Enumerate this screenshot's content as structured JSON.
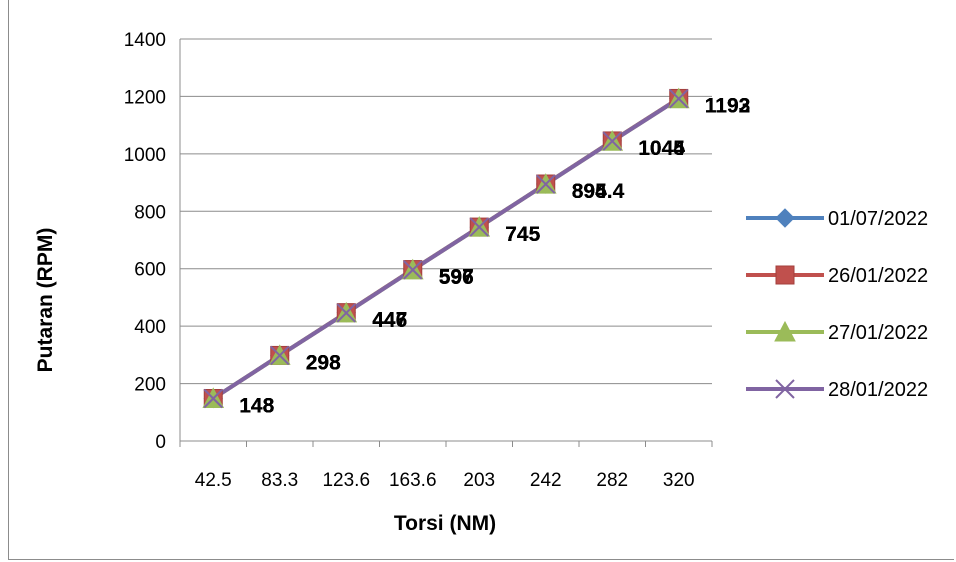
{
  "chart_data": {
    "type": "line",
    "title": "",
    "xlabel": "Torsi (NM)",
    "ylabel": "Putaran (RPM)",
    "categories": [
      "42.5",
      "83.3",
      "123.6",
      "163.6",
      "203",
      "242",
      "282",
      "320"
    ],
    "ylim": [
      0,
      1400
    ],
    "yticks": [
      0,
      200,
      400,
      600,
      800,
      1000,
      1200,
      1400
    ],
    "grid": true,
    "legend_position": "right",
    "series": [
      {
        "name": "01/07/2022",
        "values": [
          148,
          298,
          447,
          597,
          745,
          895,
          1045,
          1193
        ],
        "color": "#4f81bd",
        "marker": "diamond"
      },
      {
        "name": "26/01/2022",
        "values": [
          148,
          298,
          447,
          597,
          745,
          895,
          1045,
          1193
        ],
        "color": "#c0504d",
        "marker": "square"
      },
      {
        "name": "27/01/2022",
        "values": [
          148,
          298,
          446,
          596,
          745,
          894.4,
          1044,
          1192
        ],
        "color": "#9bbb59",
        "marker": "triangle"
      },
      {
        "name": "28/01/2022",
        "values": [
          148,
          298,
          446,
          596,
          745,
          894.4,
          1044,
          1192
        ],
        "color": "#8064a2",
        "marker": "x"
      }
    ],
    "data_labels": [
      [
        "148",
        "298",
        "447",
        "597",
        "745",
        "895",
        "1045",
        "1193"
      ],
      [
        "148",
        "298",
        "447",
        "597",
        "745",
        "895",
        "1045",
        "1193"
      ],
      [
        "148",
        "298",
        "446",
        "596",
        "745",
        "894.4",
        "1044",
        "1192"
      ],
      [
        "148",
        "298",
        "446",
        "596",
        "745",
        "894.4",
        "1044",
        "1192"
      ]
    ]
  }
}
